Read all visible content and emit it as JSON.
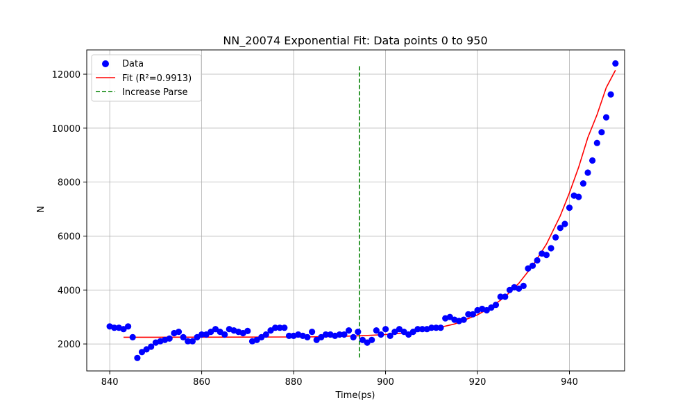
{
  "chart_data": {
    "type": "scatter",
    "title": "NN_20074 Exponential Fit: Data points 0 to 950",
    "xlabel": "Time(ps)",
    "ylabel": "N",
    "xlim": [
      835,
      952
    ],
    "ylim": [
      1000,
      12900
    ],
    "xticks": [
      840,
      860,
      880,
      900,
      920,
      940
    ],
    "yticks": [
      2000,
      4000,
      6000,
      8000,
      10000,
      12000
    ],
    "grid": true,
    "legend_position": "top-left",
    "colors": {
      "data": "#0000ff",
      "fit": "#ff0000",
      "increase": "#008000",
      "grid": "#b0b0b0"
    },
    "legend": [
      {
        "label": "Data",
        "kind": "marker"
      },
      {
        "label": "Fit (R²=0.9913)",
        "kind": "line"
      },
      {
        "label": "Increase Parse",
        "kind": "dashed"
      }
    ],
    "series": [
      {
        "name": "Data",
        "points": [
          [
            840,
            2650
          ],
          [
            841,
            2600
          ],
          [
            842,
            2600
          ],
          [
            843,
            2550
          ],
          [
            844,
            2650
          ],
          [
            845,
            2250
          ],
          [
            846,
            1480
          ],
          [
            847,
            1700
          ],
          [
            848,
            1800
          ],
          [
            849,
            1900
          ],
          [
            850,
            2050
          ],
          [
            851,
            2100
          ],
          [
            852,
            2150
          ],
          [
            853,
            2200
          ],
          [
            854,
            2400
          ],
          [
            855,
            2450
          ],
          [
            856,
            2250
          ],
          [
            857,
            2100
          ],
          [
            858,
            2100
          ],
          [
            859,
            2250
          ],
          [
            860,
            2350
          ],
          [
            861,
            2350
          ],
          [
            862,
            2450
          ],
          [
            863,
            2550
          ],
          [
            864,
            2450
          ],
          [
            865,
            2350
          ],
          [
            866,
            2550
          ],
          [
            867,
            2500
          ],
          [
            868,
            2450
          ],
          [
            869,
            2400
          ],
          [
            870,
            2480
          ],
          [
            871,
            2100
          ],
          [
            872,
            2150
          ],
          [
            873,
            2250
          ],
          [
            874,
            2350
          ],
          [
            875,
            2500
          ],
          [
            876,
            2600
          ],
          [
            877,
            2600
          ],
          [
            878,
            2600
          ],
          [
            879,
            2300
          ],
          [
            880,
            2300
          ],
          [
            881,
            2350
          ],
          [
            882,
            2300
          ],
          [
            883,
            2250
          ],
          [
            884,
            2450
          ],
          [
            885,
            2150
          ],
          [
            886,
            2250
          ],
          [
            887,
            2350
          ],
          [
            888,
            2350
          ],
          [
            889,
            2300
          ],
          [
            890,
            2350
          ],
          [
            891,
            2350
          ],
          [
            892,
            2500
          ],
          [
            893,
            2250
          ],
          [
            894,
            2450
          ],
          [
            895,
            2150
          ],
          [
            896,
            2050
          ],
          [
            897,
            2150
          ],
          [
            898,
            2500
          ],
          [
            899,
            2350
          ],
          [
            900,
            2550
          ],
          [
            901,
            2300
          ],
          [
            902,
            2450
          ],
          [
            903,
            2550
          ],
          [
            904,
            2450
          ],
          [
            905,
            2350
          ],
          [
            906,
            2450
          ],
          [
            907,
            2550
          ],
          [
            908,
            2550
          ],
          [
            909,
            2550
          ],
          [
            910,
            2600
          ],
          [
            911,
            2600
          ],
          [
            912,
            2600
          ],
          [
            913,
            2950
          ],
          [
            914,
            3000
          ],
          [
            915,
            2900
          ],
          [
            916,
            2850
          ],
          [
            917,
            2900
          ],
          [
            918,
            3100
          ],
          [
            919,
            3100
          ],
          [
            920,
            3250
          ],
          [
            921,
            3300
          ],
          [
            922,
            3250
          ],
          [
            923,
            3350
          ],
          [
            924,
            3450
          ],
          [
            925,
            3750
          ],
          [
            926,
            3750
          ],
          [
            927,
            4000
          ],
          [
            928,
            4100
          ],
          [
            929,
            4050
          ],
          [
            930,
            4150
          ],
          [
            931,
            4800
          ],
          [
            932,
            4900
          ],
          [
            933,
            5100
          ],
          [
            934,
            5350
          ],
          [
            935,
            5300
          ],
          [
            936,
            5550
          ],
          [
            937,
            5950
          ],
          [
            938,
            6300
          ],
          [
            939,
            6450
          ],
          [
            940,
            7050
          ],
          [
            941,
            7500
          ],
          [
            942,
            7450
          ],
          [
            943,
            7950
          ],
          [
            944,
            8350
          ],
          [
            945,
            8800
          ],
          [
            946,
            9450
          ],
          [
            947,
            9850
          ],
          [
            948,
            10400
          ],
          [
            949,
            11250
          ],
          [
            950,
            12400
          ]
        ]
      },
      {
        "name": "Fit (R²=0.9913)",
        "points": [
          [
            843,
            2250
          ],
          [
            850,
            2250
          ],
          [
            860,
            2252
          ],
          [
            870,
            2255
          ],
          [
            880,
            2260
          ],
          [
            885,
            2265
          ],
          [
            890,
            2280
          ],
          [
            895,
            2305
          ],
          [
            900,
            2350
          ],
          [
            905,
            2420
          ],
          [
            910,
            2540
          ],
          [
            915,
            2740
          ],
          [
            920,
            3080
          ],
          [
            923,
            3370
          ],
          [
            926,
            3750
          ],
          [
            929,
            4250
          ],
          [
            932,
            4900
          ],
          [
            935,
            5700
          ],
          [
            938,
            6750
          ],
          [
            940,
            7600
          ],
          [
            942,
            8550
          ],
          [
            944,
            9650
          ],
          [
            946,
            10500
          ],
          [
            948,
            11500
          ],
          [
            950,
            12150
          ]
        ]
      },
      {
        "name": "Increase Parse",
        "points": [
          [
            894.3,
            1500
          ],
          [
            894.3,
            12300
          ]
        ]
      }
    ]
  }
}
